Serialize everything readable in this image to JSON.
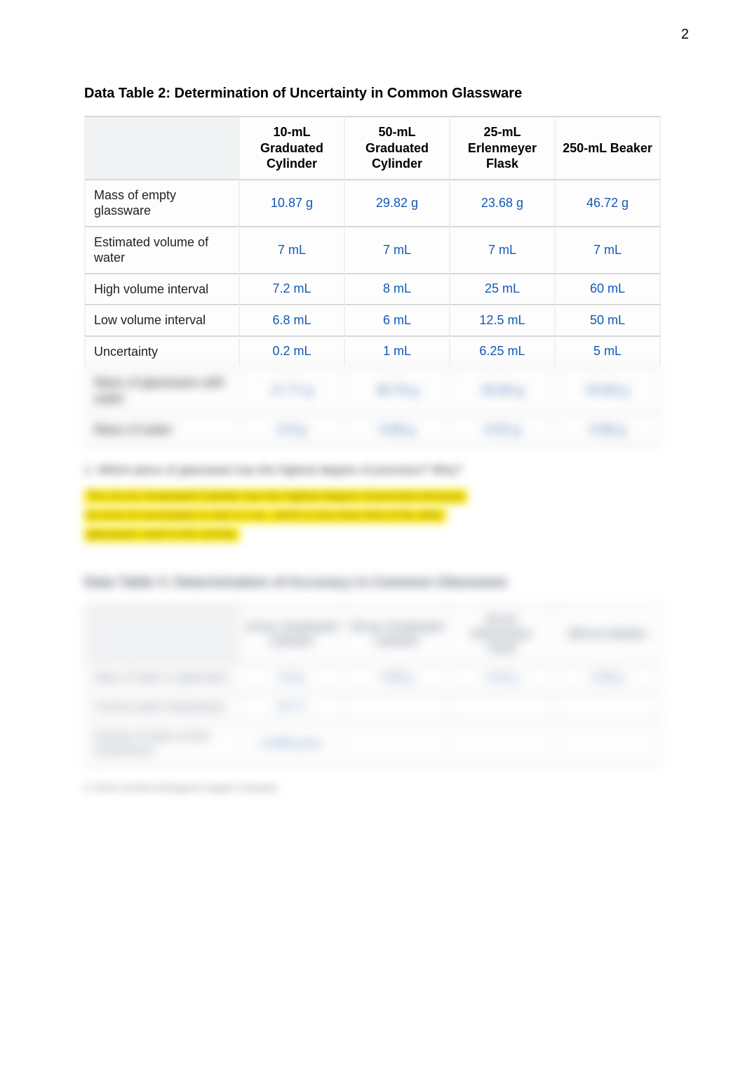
{
  "page_number": "2",
  "table2": {
    "title": "Data Table 2: Determination of Uncertainty in Common Glassware",
    "columns": [
      "",
      "10-mL Graduated Cylinder",
      "50-mL Graduated Cylinder",
      "25-mL Erlenmeyer Flask",
      "250-mL Beaker"
    ],
    "rows": [
      {
        "label": "Mass of empty glassware",
        "c1": "10.87 g",
        "c2": "29.82 g",
        "c3": "23.68 g",
        "c4": "46.72 g"
      },
      {
        "label": "Estimated volume of water",
        "c1": "7 mL",
        "c2": "7 mL",
        "c3": "7 mL",
        "c4": "7 mL"
      },
      {
        "label": "High volume interval",
        "c1": "7.2 mL",
        "c2": "8 mL",
        "c3": "25 mL",
        "c4": "60 mL"
      },
      {
        "label": "Low volume interval",
        "c1": "6.8 mL",
        "c2": "6 mL",
        "c3": "12.5 mL",
        "c4": "50 mL"
      },
      {
        "label": "Uncertainty",
        "c1": "0.2 mL",
        "c2": "1 mL",
        "c3": "6.25 mL",
        "c4": "5 mL"
      },
      {
        "label": "Mass of glassware with water",
        "c1": "17.77 g",
        "c2": "36.70 g",
        "c3": "30.60 g",
        "c4": "53.60 g"
      },
      {
        "label": "Mass of water",
        "c1": "6.9 g",
        "c2": "6.88 g",
        "c3": "6.92 g",
        "c4": "6.88 g"
      }
    ]
  },
  "question": "1. Which piece of glassware has the highest degree of precision? Why?",
  "highlight": {
    "line1": "The 10-mL Graduated Cylinder has the highest degree of precision because",
    "line2": "its level of uncertainty is only 0.2 mL, which is less than that of the other",
    "line3": "glassware used in this activity."
  },
  "table3": {
    "title": "Data Table 3: Determination of Accuracy in Common Glassware",
    "columns": [
      "",
      "10-mL Graduated Cylinder",
      "50-mL Graduated Cylinder",
      "25-mL Erlenmeyer Flask",
      "250-mL Beaker"
    ],
    "rows": [
      {
        "label": "Mass of water in glassware",
        "c1": "6.9 g",
        "c2": "6.88 g",
        "c3": "6.92 g",
        "c4": "6.88 g"
      },
      {
        "label": "Current water temperature",
        "c1": "20 °C",
        "c2": "",
        "c3": "",
        "c4": ""
      },
      {
        "label": "Density of water at that temperature",
        "c1": "0.9982 g/mL",
        "c2": "",
        "c3": "",
        "c4": ""
      }
    ]
  },
  "footer": "© 2016 Carolina Biological Supply Company",
  "colors": {
    "value": "#1359b5",
    "border": "#d8d8d8",
    "highlight": "#ffea00"
  }
}
